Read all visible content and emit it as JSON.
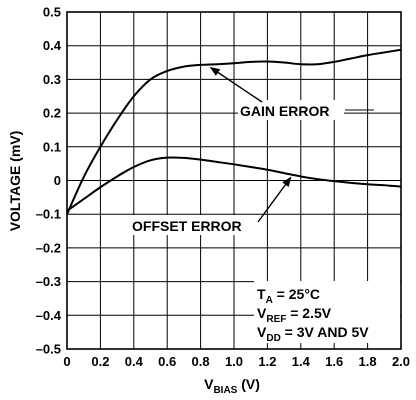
{
  "chart_data": {
    "type": "line",
    "xlabel": {
      "main": "V",
      "sub": "BIAS",
      "unit": " (V)"
    },
    "ylabel": "VOLTAGE (mV)",
    "xlim": [
      0,
      2.0
    ],
    "ylim": [
      -0.5,
      0.5
    ],
    "x_ticks": [
      "0",
      "0.2",
      "0.4",
      "0.6",
      "0.8",
      "1.0",
      "1.2",
      "1.4",
      "1.6",
      "1.8",
      "2.0"
    ],
    "y_ticks": [
      "0.5",
      "0.4",
      "0.3",
      "0.2",
      "0.1",
      "0",
      "–0.1",
      "–0.2",
      "–0.3",
      "–0.4",
      "–0.5"
    ],
    "grid": true,
    "series": [
      {
        "name": "GAIN ERROR",
        "x": [
          0,
          0.1,
          0.2,
          0.3,
          0.4,
          0.5,
          0.6,
          0.7,
          0.8,
          0.9,
          1.0,
          1.1,
          1.2,
          1.3,
          1.4,
          1.5,
          1.6,
          1.7,
          1.8,
          1.9,
          2.0
        ],
        "y": [
          -0.1,
          0.01,
          0.1,
          0.18,
          0.25,
          0.3,
          0.325,
          0.338,
          0.343,
          0.345,
          0.348,
          0.352,
          0.353,
          0.35,
          0.345,
          0.345,
          0.352,
          0.362,
          0.372,
          0.38,
          0.388
        ]
      },
      {
        "name": "OFFSET ERROR",
        "x": [
          0,
          0.1,
          0.2,
          0.3,
          0.4,
          0.5,
          0.6,
          0.7,
          0.8,
          0.9,
          1.0,
          1.1,
          1.2,
          1.3,
          1.4,
          1.5,
          1.6,
          1.7,
          1.8,
          1.9,
          2.0
        ],
        "y": [
          -0.09,
          -0.055,
          -0.02,
          0.012,
          0.04,
          0.06,
          0.068,
          0.067,
          0.062,
          0.055,
          0.048,
          0.04,
          0.032,
          0.022,
          0.012,
          0.004,
          -0.002,
          -0.007,
          -0.011,
          -0.014,
          -0.018
        ]
      }
    ],
    "annotations": [
      {
        "text": "GAIN ERROR",
        "series": "GAIN ERROR",
        "arrow_to_x": 0.86
      },
      {
        "text": "OFFSET ERROR",
        "series": "OFFSET ERROR",
        "arrow_to_x": 1.34
      }
    ],
    "conditions": [
      {
        "main": "T",
        "sub": "A",
        "rest": " = 25°C"
      },
      {
        "main": "V",
        "sub": "REF",
        "rest": " = 2.5V"
      },
      {
        "main": "V",
        "sub": "DD",
        "rest": " = 3V AND 5V"
      }
    ]
  }
}
